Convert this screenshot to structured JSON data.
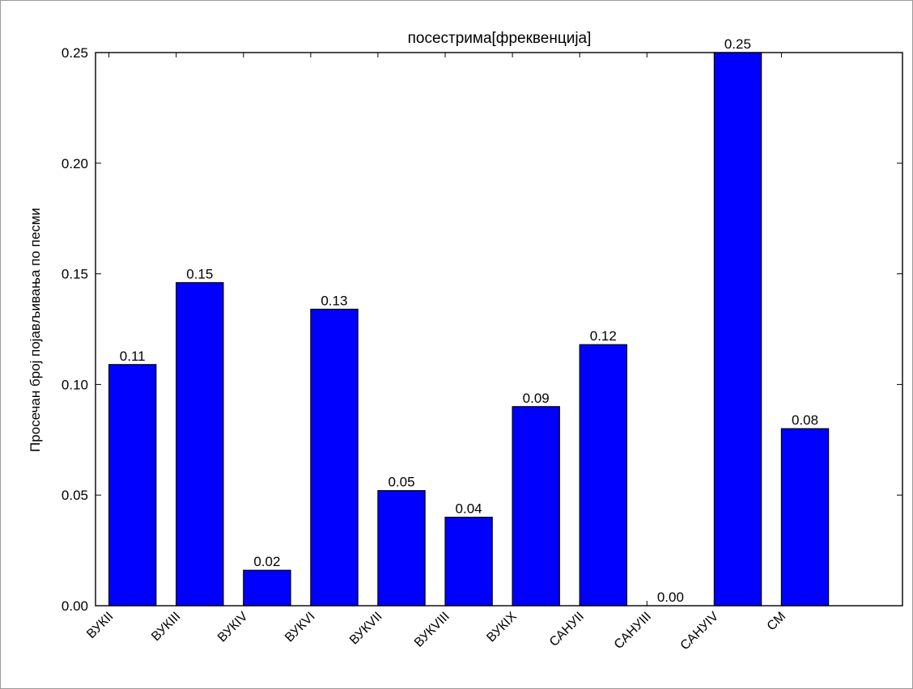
{
  "chart_data": {
    "type": "bar",
    "title": "посестрима[фреквенција]",
    "xlabel": "",
    "ylabel": "Просечан број појављивања по песми",
    "ylim": [
      0,
      0.25
    ],
    "yticks": [
      "0.00",
      "0.05",
      "0.10",
      "0.15",
      "0.20",
      "0.25"
    ],
    "categories": [
      "ВУКII",
      "ВУКIII",
      "ВУКIV",
      "ВУКVI",
      "ВУКVII",
      "ВУКVIII",
      "ВУКIX",
      "САНУII",
      "САНУIII",
      "САНУIV",
      "СМ"
    ],
    "values": [
      0.109,
      0.146,
      0.016,
      0.134,
      0.052,
      0.04,
      0.09,
      0.118,
      0.0,
      0.25,
      0.08
    ],
    "value_labels": [
      "0.11",
      "0.15",
      "0.02",
      "0.13",
      "0.05",
      "0.04",
      "0.09",
      "0.12",
      "0.00",
      "0.25",
      "0.08"
    ],
    "bar_color": "#0000ff",
    "grid": false
  }
}
